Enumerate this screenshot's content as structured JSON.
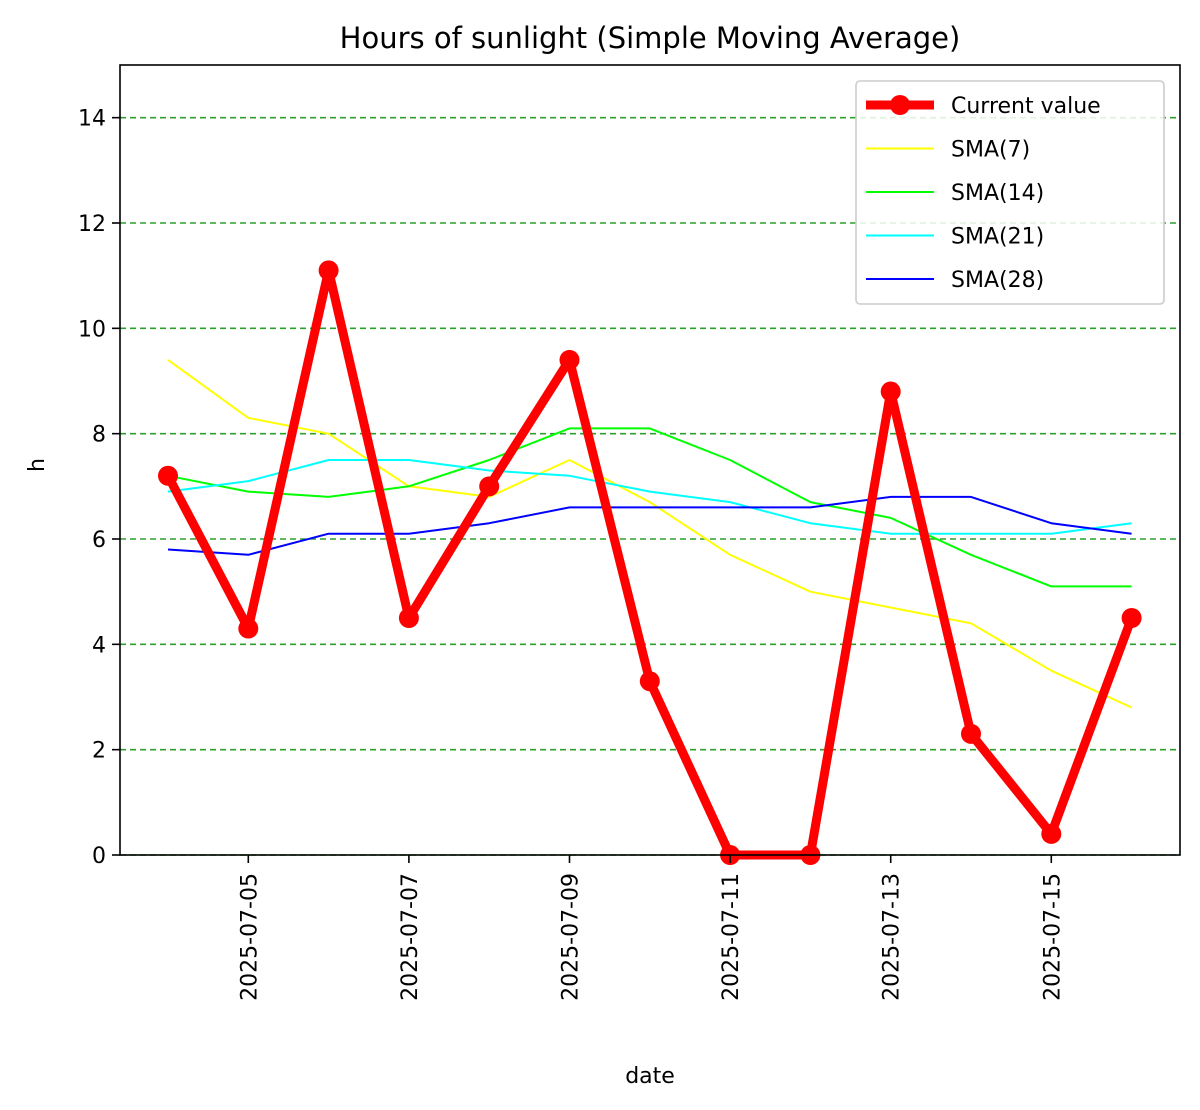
{
  "chart_data": {
    "type": "line",
    "title": "Hours of sunlight (Simple Moving Average)",
    "xlabel": "date",
    "ylabel": "h",
    "ylim": [
      0,
      15
    ],
    "yticks": [
      0,
      2,
      4,
      6,
      8,
      10,
      12,
      14
    ],
    "ytick_labels": [
      "0",
      "2",
      "4",
      "6",
      "8",
      "10",
      "12",
      "14"
    ],
    "x": [
      "2025-07-04",
      "2025-07-05",
      "2025-07-06",
      "2025-07-07",
      "2025-07-08",
      "2025-07-09",
      "2025-07-10",
      "2025-07-11",
      "2025-07-12",
      "2025-07-13",
      "2025-07-14",
      "2025-07-15",
      "2025-07-16"
    ],
    "xticks": [
      "2025-07-05",
      "2025-07-07",
      "2025-07-09",
      "2025-07-11",
      "2025-07-13",
      "2025-07-15"
    ],
    "grid": "horizontal dashed",
    "legend_position": "top-right",
    "series": [
      {
        "name": "Current value",
        "color": "#ff0000",
        "markers": true,
        "values": [
          7.2,
          4.3,
          11.1,
          4.5,
          7.0,
          9.4,
          3.3,
          0.0,
          0.0,
          8.8,
          2.3,
          0.4,
          4.5
        ]
      },
      {
        "name": "SMA(7)",
        "color": "#ffff00",
        "markers": false,
        "values": [
          9.4,
          8.3,
          8.0,
          7.0,
          6.8,
          7.5,
          6.7,
          5.7,
          5.0,
          4.7,
          4.4,
          3.5,
          2.8
        ]
      },
      {
        "name": "SMA(14)",
        "color": "#00ff00",
        "markers": false,
        "values": [
          7.2,
          6.9,
          6.8,
          7.0,
          7.5,
          8.1,
          8.1,
          7.5,
          6.7,
          6.4,
          5.7,
          5.1,
          5.1
        ]
      },
      {
        "name": "SMA(21)",
        "color": "#00ffff",
        "markers": false,
        "values": [
          6.9,
          7.1,
          7.5,
          7.5,
          7.3,
          7.2,
          6.9,
          6.7,
          6.3,
          6.1,
          6.1,
          6.1,
          6.3
        ]
      },
      {
        "name": "SMA(28)",
        "color": "#0000ff",
        "markers": false,
        "values": [
          5.8,
          5.7,
          6.1,
          6.1,
          6.3,
          6.6,
          6.6,
          6.6,
          6.6,
          6.8,
          6.8,
          6.3,
          6.1
        ]
      }
    ],
    "gridline_color": "#2ca02c"
  }
}
